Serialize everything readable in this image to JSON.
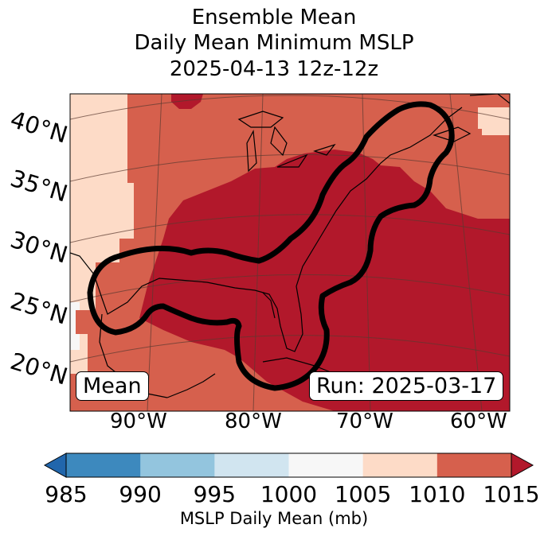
{
  "title": {
    "line1": "Ensemble Mean",
    "line2": "Daily Mean Minimum MSLP",
    "line3": "2025-04-13 12z-12z"
  },
  "map": {
    "lat_labels": [
      "40°N",
      "35°N",
      "30°N",
      "25°N",
      "20°N"
    ],
    "lon_labels": [
      "90°W",
      "80°W",
      "70°W",
      "60°W"
    ],
    "mean_box": "Mean",
    "run_box": "Run: 2025-03-17"
  },
  "colorbar": {
    "label": "MSLP Daily Mean (mb)",
    "ticks": [
      "985",
      "990",
      "995",
      "1000",
      "1005",
      "1010",
      "1015"
    ],
    "colors": [
      "#3d89be",
      "#93c5de",
      "#d1e5f0",
      "#f7f7f7",
      "#fddbc7",
      "#d6604d",
      "#b2182b",
      "#2166ac",
      "#b2182b"
    ]
  },
  "colors": {
    "shade_1005_1010": "#fddbc7",
    "shade_1010_1015": "#d6604d",
    "shade_above_1015": "#b2182b",
    "contour": "#000000"
  }
}
